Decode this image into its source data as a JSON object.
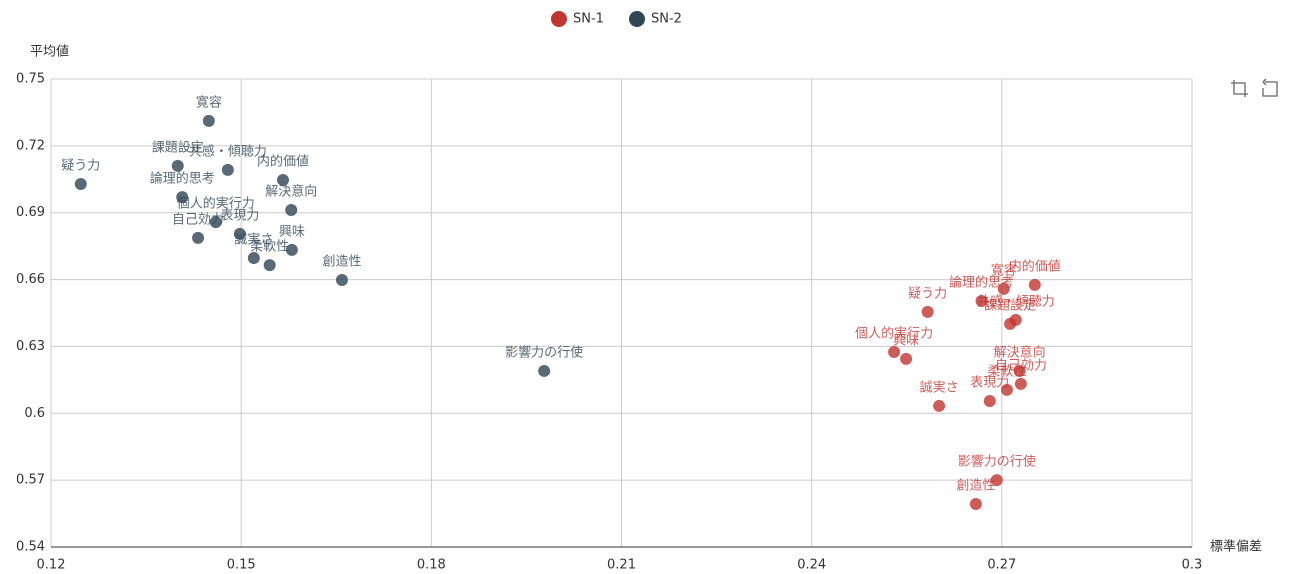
{
  "chart_data": {
    "type": "scatter",
    "x_label": "標準偏差",
    "y_label": "平均値",
    "xlim": [
      0.12,
      0.3
    ],
    "xticks": [
      0.12,
      0.15,
      0.18,
      0.21,
      0.24,
      0.27,
      0.3
    ],
    "ylim": [
      0.54,
      0.75
    ],
    "yticks": [
      0.54,
      0.57,
      0.6,
      0.63,
      0.66,
      0.69,
      0.72,
      0.75
    ],
    "grid": true,
    "legend": "top",
    "series": [
      {
        "name": "SN-1",
        "color": "#c23531",
        "labels": [
          "寛容",
          "内的価値",
          "論理的思考",
          "疑う力",
          "共感・傾聴力",
          "課題設定",
          "個人的実行力",
          "興味",
          "解決意向",
          "自己効力",
          "柔軟性",
          "表現力",
          "誠実さ",
          "影響力の行使",
          "創造性"
        ],
        "x": [
          0.2703,
          0.2752,
          0.2668,
          0.2583,
          0.2722,
          0.2713,
          0.253,
          0.2549,
          0.2728,
          0.273,
          0.2708,
          0.2681,
          0.2601,
          0.2692,
          0.2659
        ],
        "values": [
          0.6558,
          0.6576,
          0.6504,
          0.6455,
          0.6419,
          0.6401,
          0.6275,
          0.6244,
          0.619,
          0.6132,
          0.6105,
          0.6055,
          0.6033,
          0.57,
          0.5593
        ]
      },
      {
        "name": "SN-2",
        "color": "#2f4554",
        "labels": [
          "寛容",
          "課題設定",
          "共感・傾聴力",
          "疑う力",
          "内的価値",
          "論理的思考",
          "解決意向",
          "個人的実行力",
          "表現力",
          "自己効力",
          "誠実さ",
          "柔軟性",
          "興味",
          "創造性",
          "影響力の行使"
        ],
        "x": [
          0.1449,
          0.14,
          0.1479,
          0.1247,
          0.1566,
          0.1407,
          0.1579,
          0.146,
          0.1498,
          0.1432,
          0.152,
          0.1545,
          0.158,
          0.1659,
          0.1978
        ],
        "values": [
          0.7312,
          0.711,
          0.7092,
          0.7029,
          0.7047,
          0.697,
          0.6912,
          0.6858,
          0.6805,
          0.6787,
          0.6697,
          0.6665,
          0.6733,
          0.6598,
          0.619
        ]
      }
    ]
  }
}
